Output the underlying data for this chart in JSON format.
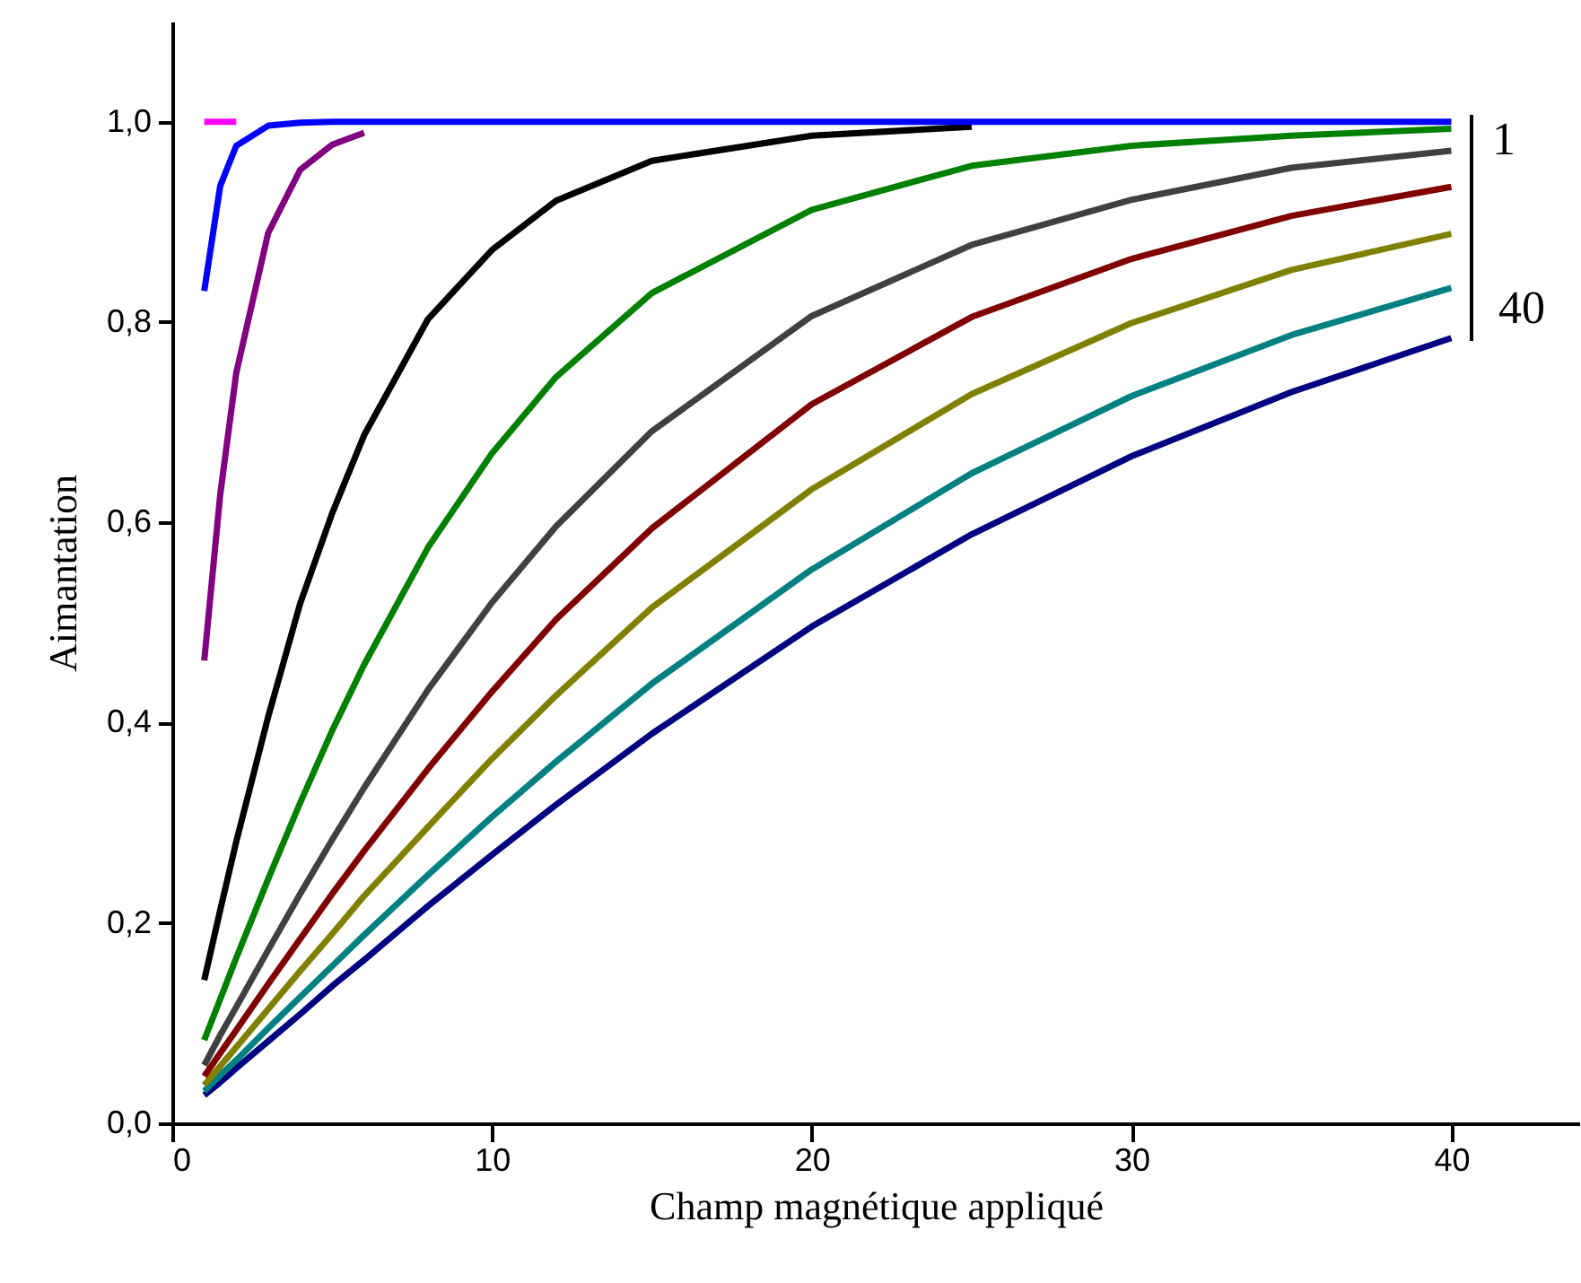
{
  "chart_data": {
    "type": "line",
    "xlabel": "Champ magnétique appliqué",
    "ylabel": "Aimantation",
    "x": [
      1,
      1.5,
      2,
      3,
      4,
      5,
      6,
      8,
      10,
      12,
      15,
      20,
      25,
      30,
      35,
      40
    ],
    "xlim": [
      0,
      44
    ],
    "xticks": [
      0,
      10,
      20,
      30,
      40
    ],
    "ylim": [
      0,
      1.1
    ],
    "yticks": [
      {
        "value": 0,
        "label": "0,0"
      },
      {
        "value": 0.2,
        "label": "0,2"
      },
      {
        "value": 0.4,
        "label": "0,4"
      },
      {
        "value": 0.6,
        "label": "0,6"
      },
      {
        "value": 0.8,
        "label": "0,8"
      },
      {
        "value": 1,
        "label": "1,0"
      }
    ],
    "line_style": "solid",
    "annotations": [
      "1",
      "40"
    ],
    "series": [
      {
        "color": "#ff00ff",
        "values": [
          1,
          1,
          1,
          null,
          null,
          null,
          null,
          null,
          null,
          null,
          null,
          null,
          null,
          null,
          null,
          null
        ]
      },
      {
        "color": "#0000ff",
        "values": [
          0.831,
          0.936,
          0.976,
          0.996,
          0.999,
          1,
          1,
          1,
          1,
          1,
          1,
          1,
          1,
          1,
          1,
          1
        ]
      },
      {
        "color": "#800080",
        "values": [
          0.462,
          0.628,
          0.749,
          0.889,
          0.952,
          0.977,
          0.989,
          null,
          null,
          null,
          null,
          null,
          null,
          null,
          null,
          null
        ]
      },
      {
        "color": "#000000",
        "values": [
          0.143,
          0.213,
          0.281,
          0.406,
          0.519,
          0.609,
          0.687,
          0.803,
          0.872,
          0.921,
          0.961,
          0.986,
          0.995,
          null,
          null,
          null
        ]
      },
      {
        "color": "#008000",
        "values": [
          0.083,
          0.124,
          0.165,
          0.244,
          0.32,
          0.392,
          0.458,
          0.575,
          0.669,
          0.745,
          0.829,
          0.912,
          0.956,
          0.976,
          0.986,
          0.993
        ]
      },
      {
        "color": "#404040",
        "values": [
          0.058,
          0.088,
          0.116,
          0.173,
          0.229,
          0.283,
          0.335,
          0.433,
          0.52,
          0.596,
          0.691,
          0.806,
          0.877,
          0.922,
          0.954,
          0.971
        ]
      },
      {
        "color": "#800000",
        "values": [
          0.047,
          0.07,
          0.093,
          0.139,
          0.184,
          0.229,
          0.272,
          0.354,
          0.431,
          0.503,
          0.594,
          0.718,
          0.805,
          0.863,
          0.906,
          0.935
        ]
      },
      {
        "color": "#808000",
        "values": [
          0.038,
          0.057,
          0.076,
          0.114,
          0.152,
          0.189,
          0.227,
          0.296,
          0.364,
          0.427,
          0.515,
          0.633,
          0.728,
          0.799,
          0.852,
          0.888
        ]
      },
      {
        "color": "#008080",
        "values": [
          0.032,
          0.048,
          0.063,
          0.095,
          0.126,
          0.157,
          0.188,
          0.248,
          0.306,
          0.361,
          0.439,
          0.553,
          0.649,
          0.726,
          0.787,
          0.834
        ]
      },
      {
        "color": "#000080",
        "values": [
          0.028,
          0.041,
          0.055,
          0.082,
          0.109,
          0.137,
          0.163,
          0.217,
          0.268,
          0.318,
          0.389,
          0.496,
          0.588,
          0.666,
          0.73,
          0.784
        ]
      }
    ]
  }
}
